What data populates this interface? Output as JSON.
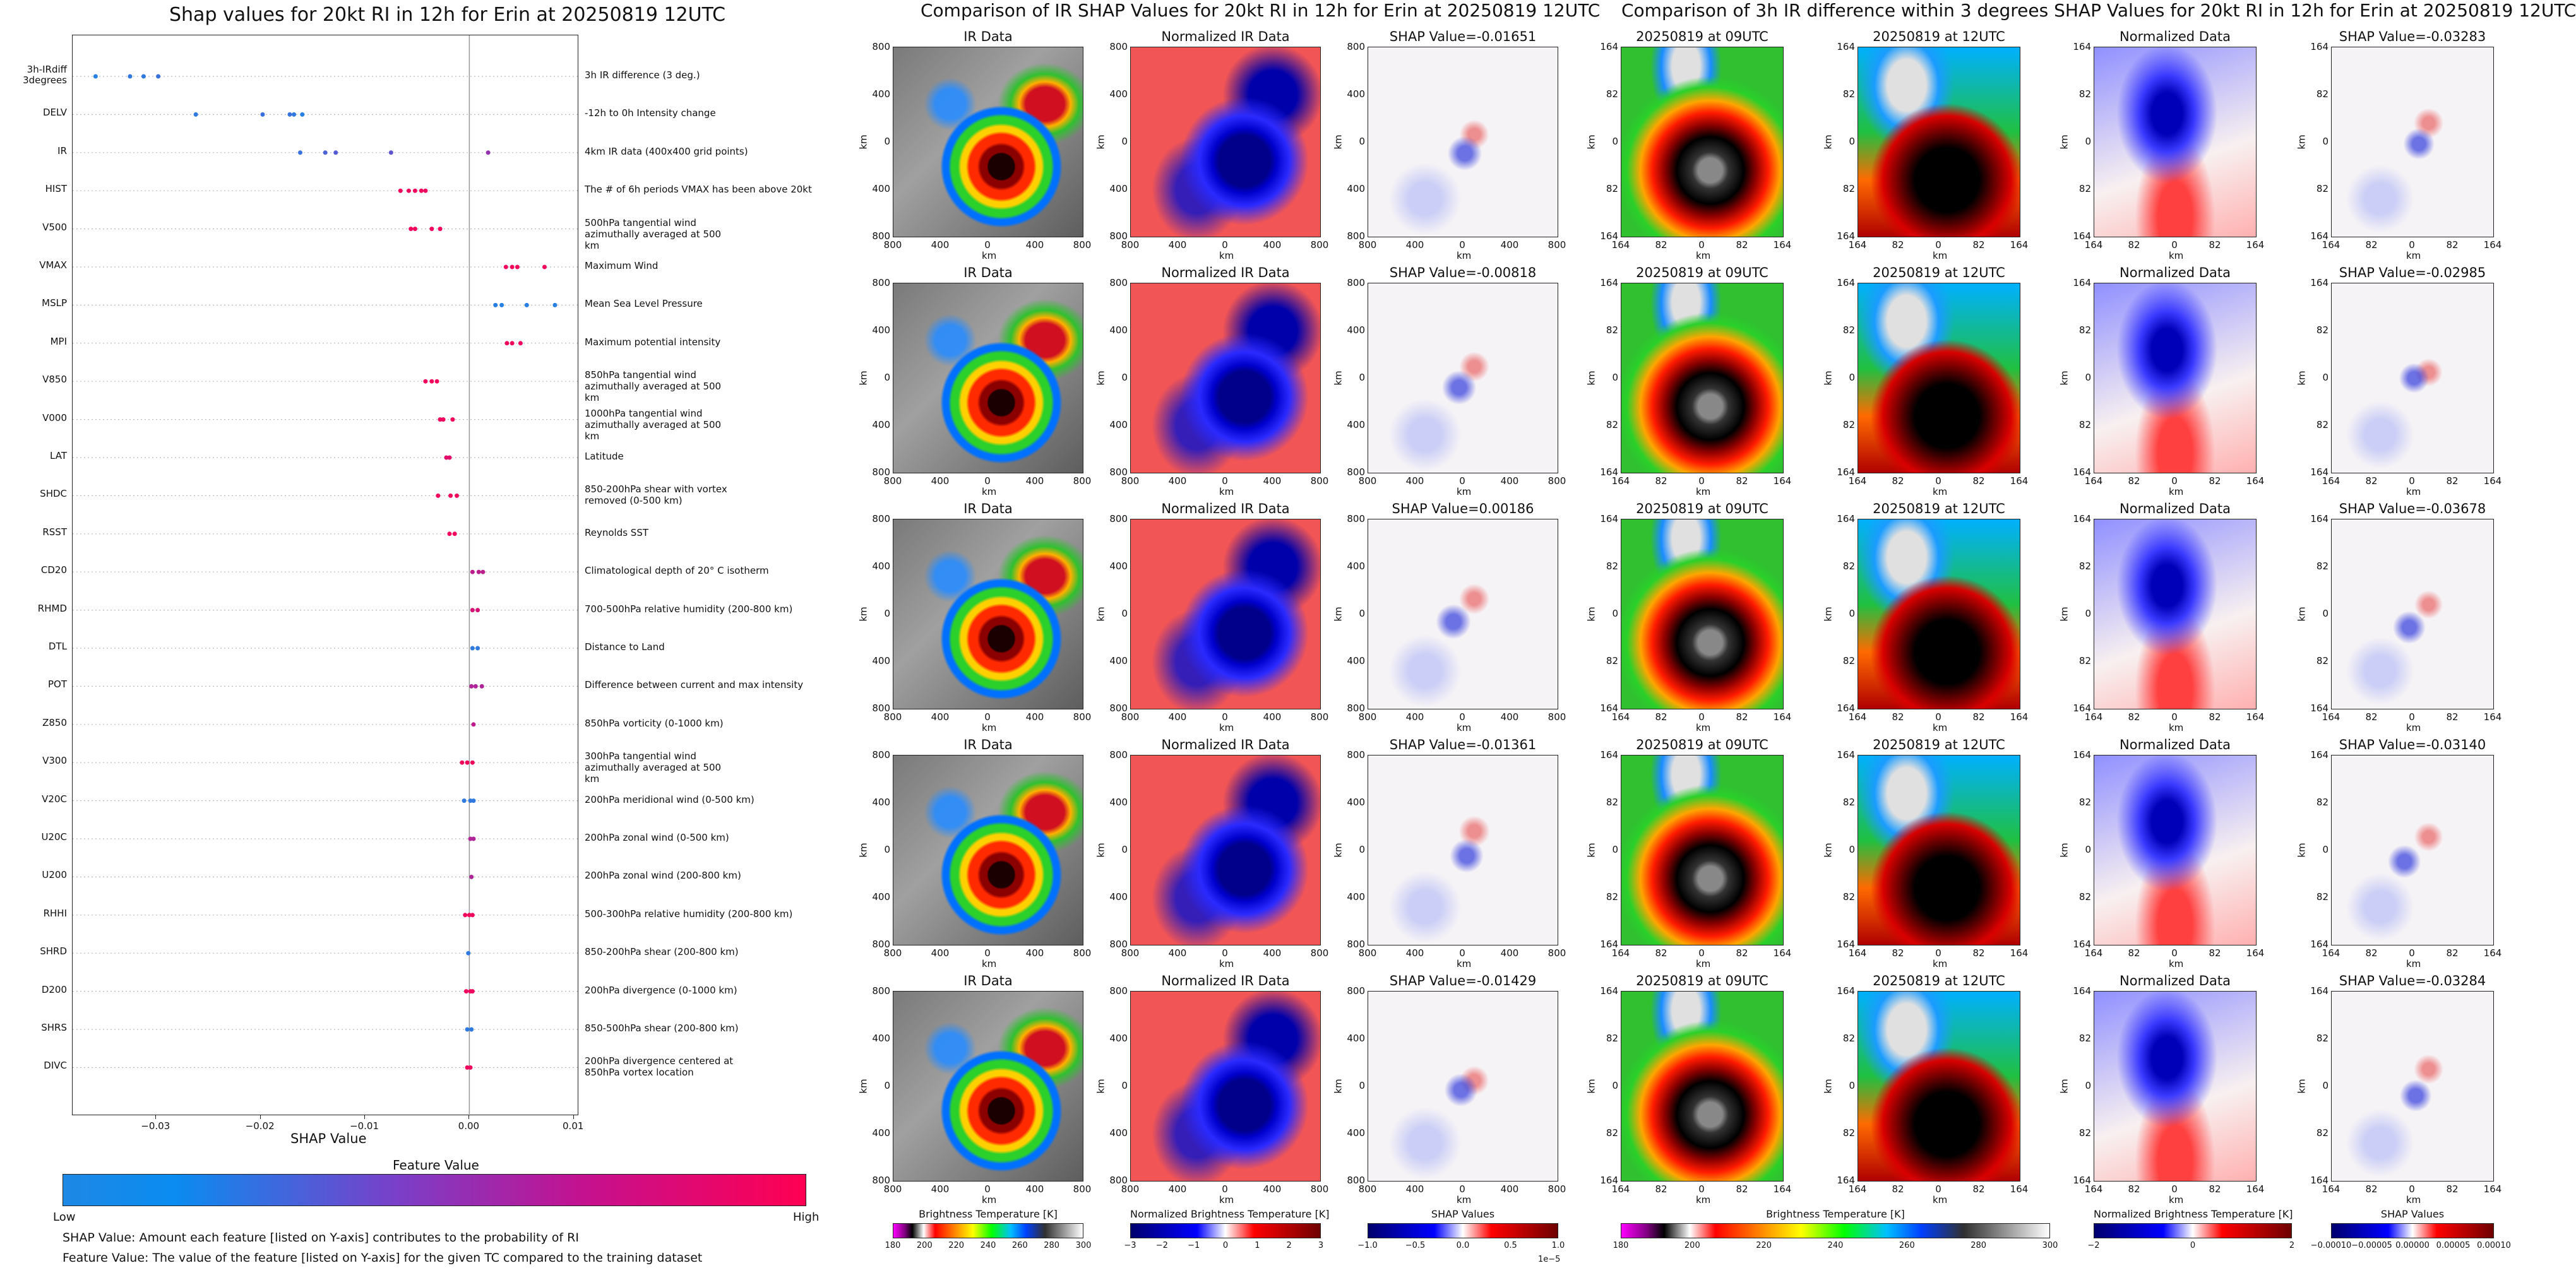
{
  "titles": {
    "left": "Shap values for 20kt RI in 12h for Erin at 20250819 12UTC",
    "middle": "Comparison of IR SHAP Values for 20kt RI in 12h for Erin at 20250819 12UTC",
    "right": "Comparison of 3h IR difference within 3 degrees SHAP Values for 20kt RI in 12h for Erin at 20250819 12UTC"
  },
  "left_plot": {
    "xlabel": "SHAP Value",
    "xticks": [
      "−0.03",
      "−0.02",
      "−0.01",
      "0.00",
      "0.01"
    ],
    "colorbar_title": "Feature Value",
    "low_label": "Low",
    "high_label": "High",
    "note1": "SHAP Value: Amount each feature [listed on Y-axis] contributes to the probability of RI",
    "note2": "Feature Value: The value of the feature [listed on Y-axis] for the given TC compared to the training dataset"
  },
  "colors": {
    "low": "#1e88e5",
    "high": "#ff0052",
    "background": "#ffffff"
  },
  "chart_data": [
    {
      "type": "scatter",
      "title": "Shap values for 20kt RI in 12h for Erin at 20250819 12UTC",
      "xlabel": "SHAP Value",
      "xlim": [
        -0.038,
        0.0105
      ],
      "features": [
        {
          "code": "3h-IRdiff 3degrees",
          "label": "3h IR difference (3 deg.)",
          "points": [
            [
              -0.0358,
              0.05
            ],
            [
              -0.0325,
              0.1
            ],
            [
              -0.0312,
              0.1
            ],
            [
              -0.0298,
              0.15
            ]
          ]
        },
        {
          "code": "DELV",
          "label": "-12h to 0h Intensity change",
          "points": [
            [
              -0.0262,
              0.1
            ],
            [
              -0.0198,
              0.15
            ],
            [
              -0.0172,
              0.15
            ],
            [
              -0.0168,
              0.1
            ],
            [
              -0.016,
              0.05
            ]
          ]
        },
        {
          "code": "IR",
          "label": "4km IR data (400x400 grid points)",
          "points": [
            [
              -0.0162,
              0.15
            ],
            [
              -0.0138,
              0.25
            ],
            [
              -0.0128,
              0.3
            ],
            [
              -0.0075,
              0.35
            ],
            [
              0.0018,
              0.6
            ]
          ]
        },
        {
          "code": "HIST",
          "label": "The # of 6h periods VMAX has been above 20kt",
          "points": [
            [
              -0.0066,
              0.95
            ],
            [
              -0.0058,
              0.95
            ],
            [
              -0.0052,
              0.95
            ],
            [
              -0.0046,
              0.95
            ],
            [
              -0.0042,
              0.95
            ]
          ]
        },
        {
          "code": "V500",
          "label": "500hPa tangential wind azimuthally averaged at 500 km",
          "points": [
            [
              -0.0056,
              0.95
            ],
            [
              -0.0052,
              0.95
            ],
            [
              -0.0036,
              0.95
            ],
            [
              -0.0028,
              0.95
            ]
          ]
        },
        {
          "code": "VMAX",
          "label": "Maximum Wind",
          "points": [
            [
              0.0035,
              0.95
            ],
            [
              0.0041,
              0.95
            ],
            [
              0.0046,
              0.95
            ],
            [
              0.0072,
              0.95
            ]
          ]
        },
        {
          "code": "MSLP",
          "label": "Mean Sea Level Pressure",
          "points": [
            [
              0.0025,
              0.05
            ],
            [
              0.0031,
              0.05
            ],
            [
              0.0055,
              0.05
            ],
            [
              0.0082,
              0.05
            ]
          ]
        },
        {
          "code": "MPI",
          "label": "Maximum potential intensity",
          "points": [
            [
              0.0036,
              0.95
            ],
            [
              0.0041,
              0.95
            ],
            [
              0.0049,
              0.95
            ]
          ]
        },
        {
          "code": "V850",
          "label": "850hPa tangential wind azimuthally averaged at 500 km",
          "points": [
            [
              -0.0042,
              0.95
            ],
            [
              -0.0036,
              0.95
            ],
            [
              -0.0031,
              0.95
            ]
          ]
        },
        {
          "code": "V000",
          "label": "1000hPa tangential wind azimuthally averaged at 500 km",
          "points": [
            [
              -0.0028,
              0.95
            ],
            [
              -0.0025,
              0.95
            ],
            [
              -0.0016,
              0.95
            ]
          ]
        },
        {
          "code": "LAT",
          "label": "Latitude",
          "points": [
            [
              -0.0022,
              0.9
            ],
            [
              -0.0019,
              0.9
            ]
          ]
        },
        {
          "code": "SHDC",
          "label": "850-200hPa shear with vortex removed (0-500 km)",
          "points": [
            [
              -0.003,
              0.95
            ],
            [
              -0.0018,
              0.95
            ],
            [
              -0.0012,
              0.95
            ]
          ]
        },
        {
          "code": "RSST",
          "label": "Reynolds SST",
          "points": [
            [
              -0.0019,
              0.95
            ],
            [
              -0.0014,
              0.95
            ]
          ]
        },
        {
          "code": "CD20",
          "label": "Climatological depth of 20° C isotherm",
          "points": [
            [
              0.0003,
              0.75
            ],
            [
              0.0009,
              0.75
            ],
            [
              0.0013,
              0.75
            ]
          ]
        },
        {
          "code": "RHMD",
          "label": "700-500hPa relative humidity (200-800 km)",
          "points": [
            [
              0.0003,
              0.85
            ],
            [
              0.0008,
              0.85
            ]
          ]
        },
        {
          "code": "DTL",
          "label": "Distance to Land",
          "points": [
            [
              0.0003,
              0.1
            ],
            [
              0.0008,
              0.1
            ]
          ]
        },
        {
          "code": "POT",
          "label": "Difference between current and max intensity",
          "points": [
            [
              0.0002,
              0.7
            ],
            [
              0.0006,
              0.7
            ],
            [
              0.0012,
              0.7
            ]
          ]
        },
        {
          "code": "Z850",
          "label": "850hPa vorticity (0-1000 km)",
          "points": [
            [
              0.0004,
              0.75
            ]
          ]
        },
        {
          "code": "V300",
          "label": "300hPa tangential wind azimuthally averaged at 500 km",
          "points": [
            [
              -0.0007,
              0.95
            ],
            [
              -0.0002,
              0.95
            ],
            [
              0.0003,
              0.95
            ]
          ]
        },
        {
          "code": "V20C",
          "label": "200hPa meridional wind (0-500 km)",
          "points": [
            [
              -0.0005,
              0.1
            ],
            [
              0.0001,
              0.1
            ],
            [
              0.0004,
              0.1
            ]
          ]
        },
        {
          "code": "U20C",
          "label": "200hPa zonal wind (0-500 km)",
          "points": [
            [
              0.0001,
              0.7
            ],
            [
              0.0004,
              0.7
            ]
          ]
        },
        {
          "code": "U200",
          "label": "200hPa zonal wind (200-800 km)",
          "points": [
            [
              0.0002,
              0.7
            ]
          ]
        },
        {
          "code": "RHHI",
          "label": "500-300hPa relative humidity (200-800 km)",
          "points": [
            [
              -0.0004,
              0.95
            ],
            [
              0.0,
              0.95
            ],
            [
              0.0003,
              0.95
            ]
          ]
        },
        {
          "code": "SHRD",
          "label": "850-200hPa shear (200-800 km)",
          "points": [
            [
              -0.0001,
              0.1
            ]
          ]
        },
        {
          "code": "D200",
          "label": "200hPa divergence (0-1000 km)",
          "points": [
            [
              -0.0003,
              0.95
            ],
            [
              0.0001,
              0.95
            ],
            [
              0.0003,
              0.95
            ]
          ]
        },
        {
          "code": "SHRS",
          "label": "850-500hPa shear (200-800 km)",
          "points": [
            [
              -0.0002,
              0.1
            ],
            [
              0.0002,
              0.1
            ]
          ]
        },
        {
          "code": "DIVC",
          "label": "200hPa divergence centered at 850hPa vortex location",
          "points": [
            [
              -0.0002,
              0.95
            ],
            [
              0.0001,
              0.95
            ]
          ]
        }
      ]
    },
    {
      "type": "heatmap",
      "title": "Comparison of IR SHAP Values for 20kt RI in 12h for Erin at 20250819 12UTC",
      "columns": [
        "IR Data",
        "Normalized IR Data"
      ],
      "shap_titles": [
        "SHAP Value=-0.01651",
        "SHAP Value=-0.00818",
        "SHAP Value=0.00186",
        "SHAP Value=-0.01361",
        "SHAP Value=-0.01429"
      ],
      "xlabel": "km",
      "ylabel": "km",
      "xticks": [
        "800",
        "400",
        "0",
        "400",
        "800"
      ],
      "yticks": [
        "800",
        "400",
        "0",
        "400",
        "800"
      ],
      "colorbars": [
        {
          "label": "Brightness Temperature [K]",
          "ticks": [
            "180",
            "200",
            "220",
            "240",
            "260",
            "280",
            "300"
          ]
        },
        {
          "label": "Normalized Brightness Temperature [K]",
          "ticks": [
            "−3",
            "−2",
            "−1",
            "0",
            "1",
            "2",
            "3"
          ]
        },
        {
          "label": "SHAP Values",
          "ticks": [
            "−1.0",
            "−0.5",
            "0.0",
            "0.5",
            "1.0"
          ],
          "offset": "1e−5"
        }
      ]
    },
    {
      "type": "heatmap",
      "title": "Comparison of 3h IR difference within 3 degrees SHAP Values for 20kt RI in 12h for Erin at 20250819 12UTC",
      "columns": [
        "20250819 at 09UTC",
        "20250819 at 12UTC",
        "Normalized Data"
      ],
      "shap_titles": [
        "SHAP Value=-0.03283",
        "SHAP Value=-0.02985",
        "SHAP Value=-0.03678",
        "SHAP Value=-0.03140",
        "SHAP Value=-0.03284"
      ],
      "xlabel": "km",
      "ylabel": "km",
      "xticks": [
        "164",
        "82",
        "0",
        "82",
        "164"
      ],
      "yticks": [
        "164",
        "82",
        "0",
        "82",
        "164"
      ],
      "colorbars": [
        {
          "label": "Brightness Temperature [K]",
          "ticks": [
            "180",
            "200",
            "220",
            "240",
            "260",
            "280",
            "300"
          ]
        },
        {
          "label": "Normalized Brightness Temperature [K]",
          "ticks": [
            "−2",
            "0",
            "2"
          ]
        },
        {
          "label": "SHAP Values",
          "ticks": [
            "−0.00010",
            "−0.00005",
            "0.00000",
            "0.00005",
            "0.00010"
          ]
        }
      ]
    }
  ]
}
